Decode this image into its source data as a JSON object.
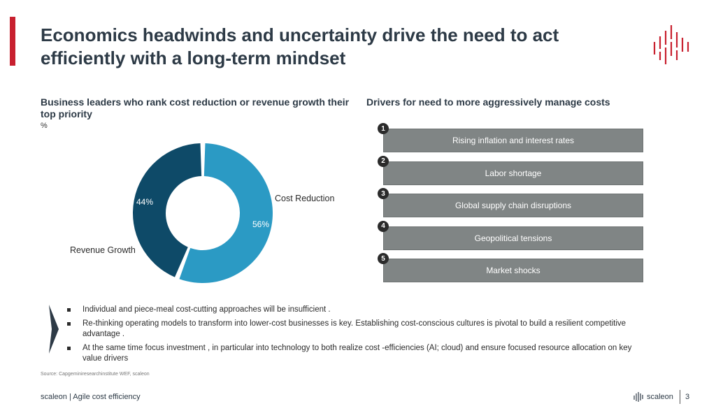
{
  "header": {
    "title": "Economics headwinds and uncertainty drive the need to act efficiently with a long-term mindset",
    "accent_color": "#c8202f"
  },
  "left_panel": {
    "heading": "Business leaders who rank cost reduction or revenue growth their top priority",
    "unit": "%"
  },
  "chart_data": {
    "type": "pie",
    "donut": true,
    "title": "Business leaders who rank cost reduction or revenue growth their top priority",
    "unit": "%",
    "categories": [
      "Cost Reduction",
      "Revenue Growth"
    ],
    "values": [
      56,
      44
    ],
    "value_labels": [
      "56%",
      "44%"
    ],
    "colors": [
      "#2b9ac4",
      "#0e4a68"
    ]
  },
  "right_panel": {
    "heading": "Drivers for need to more aggressively manage costs",
    "drivers": [
      {
        "num": "1",
        "label": "Rising inflation and interest rates"
      },
      {
        "num": "2",
        "label": "Labor shortage"
      },
      {
        "num": "3",
        "label": "Global supply chain disruptions"
      },
      {
        "num": "4",
        "label": "Geopolitical tensions"
      },
      {
        "num": "5",
        "label": "Market shocks"
      }
    ]
  },
  "bullets": [
    "Individual and  piece-meal cost-cutting approaches will be insufficient .",
    "Re-thinking operating models to transform into lower-cost businesses is key. Establishing cost-conscious cultures is pivotal to build a resilient competitive advantage .",
    "At the same time focus investment , in particular into technology to both realize cost -efficiencies (AI; cloud) and ensure focused resource allocation on key value drivers"
  ],
  "source": "Source: Capgeminiresearchinstitute WEF, scaleon",
  "footer": {
    "left": "scaleon | Agile cost efficiency",
    "brand": "scaleon",
    "page": "3"
  }
}
